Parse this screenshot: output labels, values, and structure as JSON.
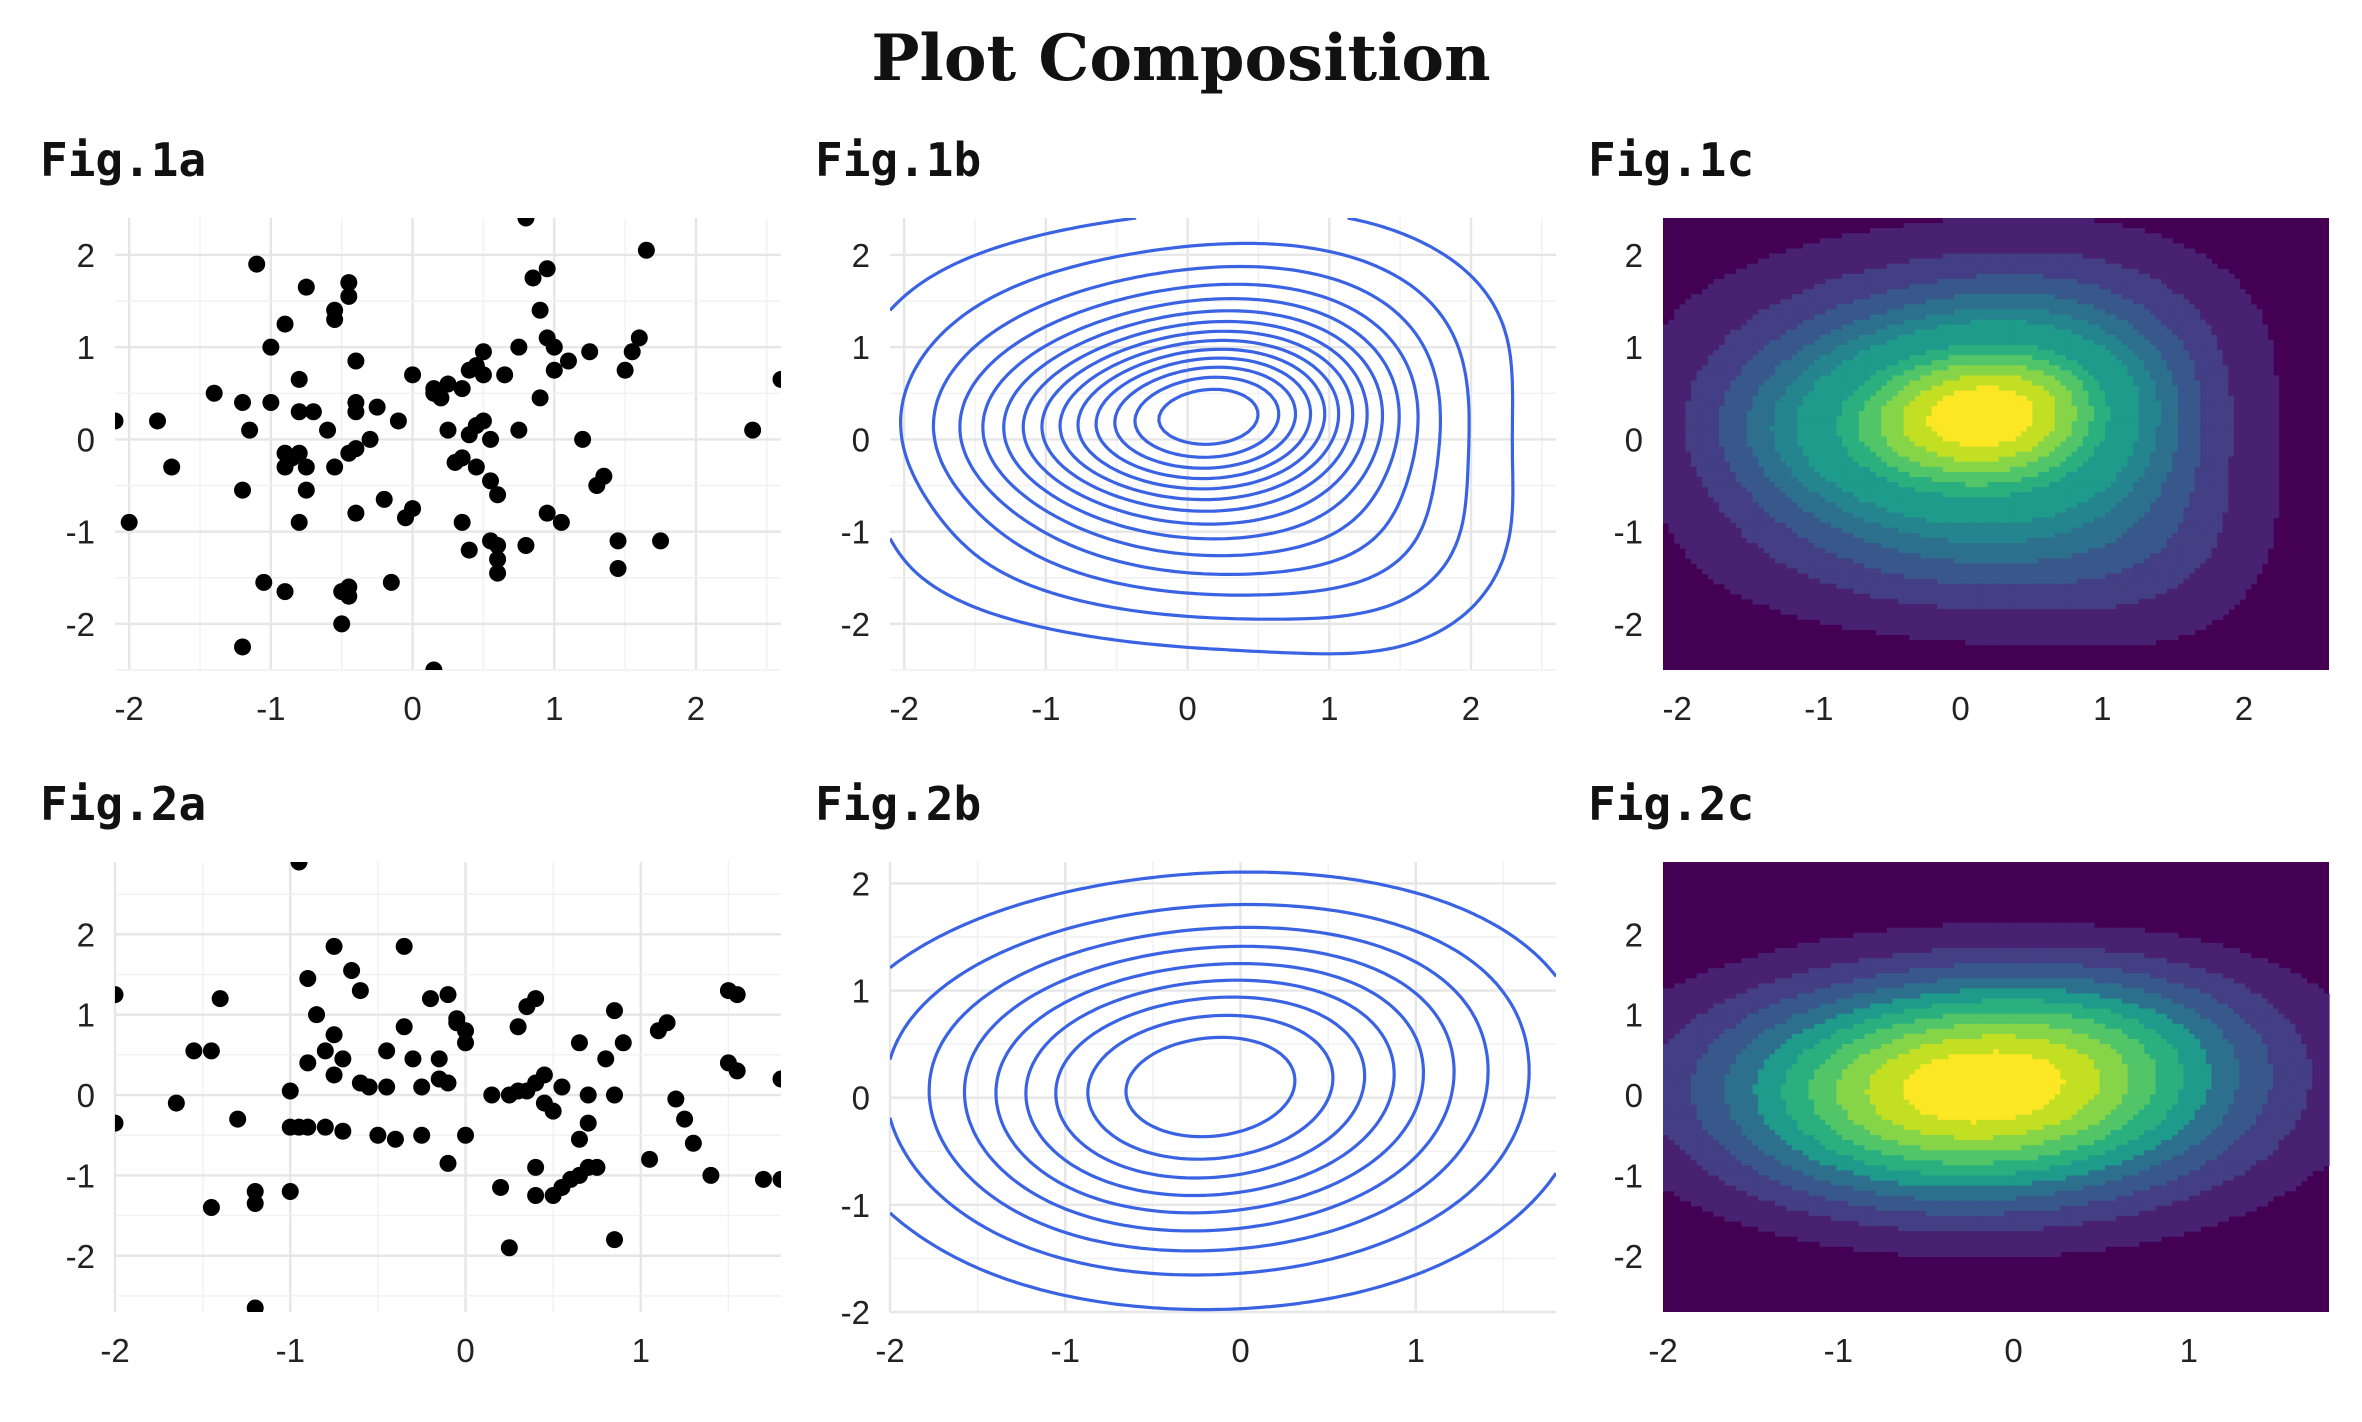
{
  "title": "Plot Composition",
  "chart_data": [
    {
      "id": "fig1a",
      "panel_title": "Fig.1a",
      "type": "scatter",
      "xlim": [
        -2.1,
        2.6
      ],
      "ylim": [
        -2.5,
        2.4
      ],
      "xticks": [
        -2,
        -1,
        0,
        1,
        2
      ],
      "yticks": [
        -2,
        -1,
        0,
        1,
        2
      ],
      "grid": true,
      "point_color": "#000000",
      "points": [
        [
          -2.1,
          0.2
        ],
        [
          -1.8,
          0.2
        ],
        [
          -1.7,
          -0.3
        ],
        [
          -2.0,
          -0.9
        ],
        [
          -1.4,
          0.5
        ],
        [
          -1.2,
          0.4
        ],
        [
          -1.15,
          0.1
        ],
        [
          -1.2,
          -0.55
        ],
        [
          -1.1,
          1.9
        ],
        [
          -1.0,
          1.0
        ],
        [
          -0.9,
          1.25
        ],
        [
          -0.75,
          1.65
        ],
        [
          -0.55,
          1.3
        ],
        [
          -0.55,
          1.4
        ],
        [
          -0.45,
          1.7
        ],
        [
          -0.45,
          1.55
        ],
        [
          -1.0,
          0.4
        ],
        [
          -0.8,
          0.65
        ],
        [
          -0.8,
          0.3
        ],
        [
          -0.7,
          0.3
        ],
        [
          -0.6,
          0.1
        ],
        [
          -0.4,
          0.3
        ],
        [
          -0.4,
          0.4
        ],
        [
          -0.4,
          0.85
        ],
        [
          -0.25,
          0.35
        ],
        [
          -0.1,
          0.2
        ],
        [
          -0.9,
          -0.15
        ],
        [
          -0.85,
          -0.2
        ],
        [
          -0.8,
          -0.15
        ],
        [
          -0.9,
          -0.3
        ],
        [
          -0.75,
          -0.3
        ],
        [
          -0.75,
          -0.55
        ],
        [
          -0.8,
          -0.9
        ],
        [
          -0.55,
          -0.3
        ],
        [
          -0.45,
          -0.15
        ],
        [
          -0.4,
          -0.1
        ],
        [
          -0.4,
          -0.8
        ],
        [
          -0.2,
          -0.65
        ],
        [
          -0.05,
          -0.85
        ],
        [
          0.0,
          0.7
        ],
        [
          0.15,
          0.55
        ],
        [
          0.2,
          0.45
        ],
        [
          0.25,
          0.6
        ],
        [
          0.35,
          0.55
        ],
        [
          0.4,
          0.75
        ],
        [
          0.45,
          0.8
        ],
        [
          0.5,
          0.95
        ],
        [
          0.5,
          0.7
        ],
        [
          0.25,
          0.1
        ],
        [
          0.4,
          0.05
        ],
        [
          0.45,
          0.15
        ],
        [
          0.5,
          0.2
        ],
        [
          0.35,
          -0.2
        ],
        [
          0.3,
          -0.25
        ],
        [
          0.55,
          -0.45
        ],
        [
          0.45,
          -0.3
        ],
        [
          0.35,
          -0.9
        ],
        [
          0.4,
          -1.2
        ],
        [
          0.55,
          -1.1
        ],
        [
          0.6,
          -1.15
        ],
        [
          0.6,
          -1.3
        ],
        [
          0.6,
          -1.45
        ],
        [
          0.8,
          -1.15
        ],
        [
          0.65,
          0.7
        ],
        [
          0.75,
          1.0
        ],
        [
          0.85,
          1.75
        ],
        [
          0.95,
          1.85
        ],
        [
          0.9,
          1.4
        ],
        [
          0.95,
          1.1
        ],
        [
          1.0,
          0.75
        ],
        [
          1.0,
          1.0
        ],
        [
          1.1,
          0.85
        ],
        [
          1.25,
          0.95
        ],
        [
          0.9,
          0.45
        ],
        [
          0.75,
          0.1
        ],
        [
          0.6,
          -0.6
        ],
        [
          0.95,
          -0.8
        ],
        [
          1.05,
          -0.9
        ],
        [
          1.2,
          0.0
        ],
        [
          1.3,
          -0.5
        ],
        [
          1.35,
          -0.4
        ],
        [
          1.45,
          -1.1
        ],
        [
          1.45,
          -1.4
        ],
        [
          1.5,
          0.75
        ],
        [
          1.55,
          0.95
        ],
        [
          1.6,
          1.1
        ],
        [
          1.65,
          2.05
        ],
        [
          1.75,
          -1.1
        ],
        [
          2.4,
          0.1
        ],
        [
          2.6,
          0.65
        ],
        [
          0.8,
          2.4
        ],
        [
          -1.2,
          -2.25
        ],
        [
          0.15,
          -2.5
        ],
        [
          -0.15,
          -1.55
        ],
        [
          -0.45,
          -1.6
        ],
        [
          -0.5,
          -1.65
        ],
        [
          -0.45,
          -1.7
        ],
        [
          -0.5,
          -2.0
        ],
        [
          -0.9,
          -1.65
        ],
        [
          -1.05,
          -1.55
        ],
        [
          0.0,
          -0.75
        ],
        [
          -0.3,
          0.0
        ],
        [
          0.15,
          0.5
        ],
        [
          0.55,
          0.0
        ]
      ]
    },
    {
      "id": "fig1b",
      "panel_title": "Fig.1b",
      "type": "contour",
      "xlim": [
        -2.1,
        2.6
      ],
      "ylim": [
        -2.5,
        2.4
      ],
      "xticks": [
        -2,
        -1,
        0,
        1,
        2
      ],
      "yticks": [
        -2,
        -1,
        0,
        1,
        2
      ],
      "grid": true,
      "line_color": "#3a63e3",
      "levels": 14,
      "kernels": [
        [
          -0.6,
          0.05,
          0.55,
          0.45,
          1.0
        ],
        [
          0.35,
          0.35,
          0.45,
          0.4,
          1.15
        ],
        [
          0.5,
          -0.65,
          0.55,
          0.55,
          0.55
        ],
        [
          -0.3,
          1.25,
          0.8,
          0.5,
          0.35
        ],
        [
          0.9,
          1.1,
          0.55,
          0.55,
          0.3
        ],
        [
          -0.6,
          -1.3,
          0.7,
          0.4,
          0.25
        ],
        [
          1.45,
          -1.1,
          0.4,
          0.6,
          0.2
        ]
      ],
      "spread": 1.55
    },
    {
      "id": "fig1c",
      "panel_title": "Fig.1c",
      "type": "heatmap",
      "xlim": [
        -2.1,
        2.6
      ],
      "ylim": [
        -2.5,
        2.4
      ],
      "xticks": [
        -2,
        -1,
        0,
        1,
        2
      ],
      "yticks": [
        -2,
        -1,
        0,
        1,
        2
      ],
      "grid": false,
      "colors": [
        "#440154",
        "#482173",
        "#433e85",
        "#38588c",
        "#2d708e",
        "#25858e",
        "#1e9b8a",
        "#2ab07f",
        "#52c569",
        "#86d549",
        "#c2df23",
        "#fde725"
      ],
      "levels": 12,
      "kernels": [
        [
          -0.6,
          0.05,
          0.55,
          0.45,
          1.0
        ],
        [
          0.35,
          0.35,
          0.45,
          0.4,
          1.15
        ],
        [
          0.5,
          -0.65,
          0.55,
          0.55,
          0.55
        ],
        [
          -0.3,
          1.25,
          0.8,
          0.5,
          0.35
        ],
        [
          0.9,
          1.1,
          0.55,
          0.55,
          0.3
        ],
        [
          -0.6,
          -1.3,
          0.7,
          0.4,
          0.25
        ],
        [
          1.45,
          -1.1,
          0.4,
          0.6,
          0.2
        ]
      ],
      "spread": 1.55
    },
    {
      "id": "fig2a",
      "panel_title": "Fig.2a",
      "type": "scatter",
      "xlim": [
        -2.0,
        1.8
      ],
      "ylim": [
        -2.7,
        2.9
      ],
      "xticks": [
        -2,
        -1,
        0,
        1
      ],
      "yticks": [
        -2,
        -1,
        0,
        1,
        2
      ],
      "grid": true,
      "point_color": "#000000",
      "points": [
        [
          -2.0,
          1.25
        ],
        [
          -2.0,
          -0.35
        ],
        [
          -1.65,
          -0.1
        ],
        [
          -1.55,
          0.55
        ],
        [
          -1.45,
          0.55
        ],
        [
          -1.4,
          1.2
        ],
        [
          -1.45,
          -1.4
        ],
        [
          -1.3,
          -0.3
        ],
        [
          -1.2,
          -1.2
        ],
        [
          -1.2,
          -1.35
        ],
        [
          -1.2,
          -2.65
        ],
        [
          -1.0,
          -1.2
        ],
        [
          -1.0,
          0.05
        ],
        [
          -0.95,
          -0.4
        ],
        [
          -0.9,
          -0.4
        ],
        [
          -0.9,
          0.4
        ],
        [
          -0.95,
          2.9
        ],
        [
          -0.9,
          1.45
        ],
        [
          -0.85,
          1.0
        ],
        [
          -0.8,
          0.55
        ],
        [
          -0.8,
          -0.4
        ],
        [
          -0.75,
          1.85
        ],
        [
          -0.75,
          0.25
        ],
        [
          -0.75,
          0.75
        ],
        [
          -0.7,
          0.45
        ],
        [
          -0.7,
          -0.45
        ],
        [
          -0.65,
          1.55
        ],
        [
          -0.6,
          1.3
        ],
        [
          -0.6,
          0.15
        ],
        [
          -0.55,
          0.1
        ],
        [
          -0.5,
          -0.5
        ],
        [
          -0.45,
          0.1
        ],
        [
          -0.45,
          0.55
        ],
        [
          -0.4,
          -0.55
        ],
        [
          -0.35,
          1.85
        ],
        [
          -0.35,
          0.85
        ],
        [
          -0.3,
          0.45
        ],
        [
          -0.25,
          0.1
        ],
        [
          -0.25,
          -0.5
        ],
        [
          -0.2,
          1.2
        ],
        [
          -0.15,
          0.2
        ],
        [
          -0.15,
          0.45
        ],
        [
          -0.1,
          0.15
        ],
        [
          -0.1,
          1.25
        ],
        [
          -0.1,
          -0.85
        ],
        [
          -0.05,
          0.95
        ],
        [
          -0.05,
          0.9
        ],
        [
          0.0,
          0.65
        ],
        [
          0.0,
          -0.5
        ],
        [
          0.0,
          0.8
        ],
        [
          0.15,
          0.0
        ],
        [
          0.2,
          -1.15
        ],
        [
          0.25,
          0.0
        ],
        [
          0.25,
          -1.9
        ],
        [
          0.3,
          0.05
        ],
        [
          0.3,
          0.85
        ],
        [
          0.35,
          0.05
        ],
        [
          0.35,
          1.1
        ],
        [
          0.4,
          1.2
        ],
        [
          0.4,
          0.15
        ],
        [
          0.4,
          -0.9
        ],
        [
          0.45,
          0.25
        ],
        [
          0.45,
          -0.1
        ],
        [
          0.4,
          -1.25
        ],
        [
          0.5,
          -1.25
        ],
        [
          0.5,
          -0.2
        ],
        [
          0.55,
          -1.15
        ],
        [
          0.55,
          0.1
        ],
        [
          0.6,
          -1.05
        ],
        [
          0.65,
          -0.55
        ],
        [
          0.65,
          -1.0
        ],
        [
          0.65,
          0.65
        ],
        [
          0.7,
          -0.35
        ],
        [
          0.7,
          0.0
        ],
        [
          0.7,
          -0.9
        ],
        [
          0.75,
          -0.9
        ],
        [
          0.8,
          0.45
        ],
        [
          0.85,
          1.05
        ],
        [
          0.85,
          0.0
        ],
        [
          0.85,
          -1.8
        ],
        [
          0.9,
          0.65
        ],
        [
          1.05,
          -0.8
        ],
        [
          1.1,
          0.8
        ],
        [
          1.15,
          0.9
        ],
        [
          1.2,
          -0.05
        ],
        [
          1.25,
          -0.3
        ],
        [
          1.3,
          -0.6
        ],
        [
          1.4,
          -1.0
        ],
        [
          1.5,
          1.3
        ],
        [
          1.5,
          0.4
        ],
        [
          1.55,
          1.25
        ],
        [
          1.55,
          0.3
        ],
        [
          1.7,
          -1.05
        ],
        [
          1.8,
          -1.05
        ],
        [
          1.8,
          0.2
        ],
        [
          -1.0,
          -0.4
        ]
      ]
    },
    {
      "id": "fig2b",
      "panel_title": "Fig.2b",
      "type": "contour",
      "xlim": [
        -2.0,
        1.8
      ],
      "ylim": [
        -2.0,
        2.2
      ],
      "xticks": [
        -2,
        -1,
        0,
        1
      ],
      "yticks": [
        -2,
        -1,
        0,
        1,
        2
      ],
      "grid": true,
      "line_color": "#3a63e3",
      "levels": 9,
      "kernels": [
        [
          -0.35,
          0.2,
          0.8,
          0.7,
          1.0
        ],
        [
          0.35,
          -0.15,
          0.7,
          0.8,
          0.35
        ],
        [
          -0.7,
          -0.8,
          0.6,
          0.55,
          0.2
        ],
        [
          0.6,
          1.0,
          0.6,
          0.5,
          0.15
        ]
      ],
      "spread": 1.25
    },
    {
      "id": "fig2c",
      "panel_title": "Fig.2c",
      "type": "heatmap",
      "xlim": [
        -2.0,
        1.8
      ],
      "ylim": [
        -2.7,
        2.9
      ],
      "xticks": [
        -2,
        -1,
        0,
        1
      ],
      "yticks": [
        -2,
        -1,
        0,
        1,
        2
      ],
      "grid": false,
      "colors": [
        "#440154",
        "#482173",
        "#433e85",
        "#38588c",
        "#2d708e",
        "#25858e",
        "#1e9b8a",
        "#2ab07f",
        "#52c569",
        "#86d549",
        "#c2df23",
        "#fde725"
      ],
      "levels": 10,
      "kernels": [
        [
          -0.35,
          0.2,
          0.8,
          0.7,
          1.0
        ],
        [
          0.35,
          -0.15,
          0.7,
          0.8,
          0.35
        ],
        [
          -0.7,
          -0.8,
          0.6,
          0.55,
          0.2
        ],
        [
          0.6,
          1.0,
          0.6,
          0.5,
          0.15
        ]
      ],
      "spread": 1.25
    }
  ]
}
